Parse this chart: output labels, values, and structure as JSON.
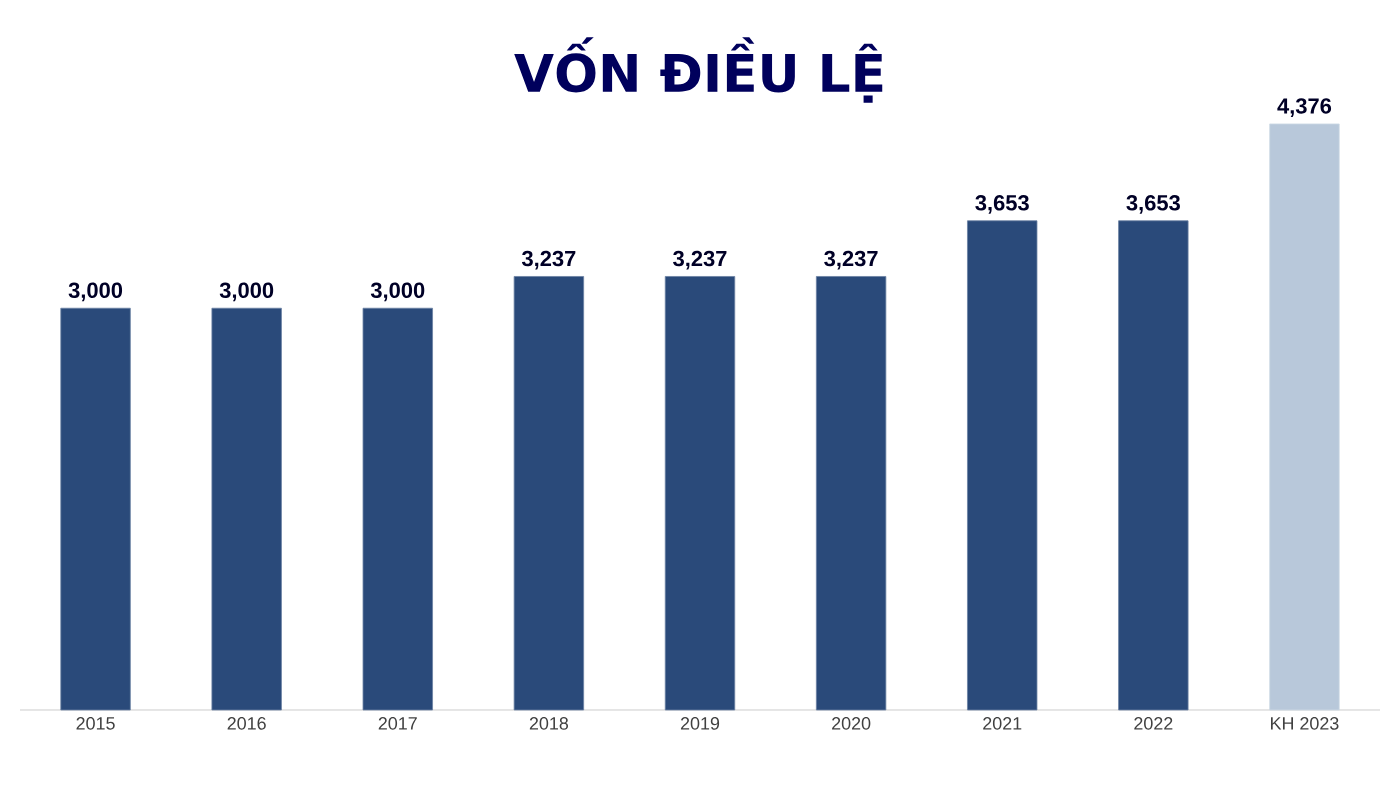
{
  "chart_data": {
    "type": "bar",
    "title": "VỐN ĐIỀU LỆ",
    "categories": [
      "2015",
      "2016",
      "2017",
      "2018",
      "2019",
      "2020",
      "2021",
      "2022",
      "KH 2023"
    ],
    "values": [
      3000,
      3000,
      3000,
      3237,
      3237,
      3237,
      3653,
      3653,
      4376
    ],
    "value_labels": [
      "3,000",
      "3,000",
      "3,000",
      "3,237",
      "3,237",
      "3,237",
      "3,653",
      "3,653",
      "4,376"
    ],
    "colors": [
      "#2a4a7a",
      "#2a4a7a",
      "#2a4a7a",
      "#2a4a7a",
      "#2a4a7a",
      "#2a4a7a",
      "#2a4a7a",
      "#2a4a7a",
      "#b8c8da"
    ],
    "tick_labels": "x",
    "grid": false
  }
}
